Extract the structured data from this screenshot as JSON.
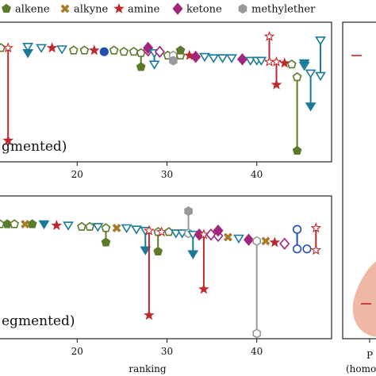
{
  "legend": [
    {
      "label": "alkene",
      "marker": "pentagon",
      "color": "#5b7a2a"
    },
    {
      "label": "alkyne",
      "marker": "cross",
      "color": "#a67c2a"
    },
    {
      "label": "amine",
      "marker": "star",
      "color": "#c0282d"
    },
    {
      "label": "ketone",
      "marker": "diamond",
      "color": "#a3267c"
    },
    {
      "label": "methylether",
      "marker": "hexagon",
      "color": "#999999"
    }
  ],
  "colors": {
    "alkene": "#5b7a2a",
    "alkyne": "#a67c2a",
    "amine": "#c0282d",
    "ketone": "#a3267c",
    "methylether": "#999999",
    "teal": "#1a7a99",
    "blue": "#1f4fb0",
    "violin": "#f0b8a4"
  },
  "chart_data": [
    {
      "type": "scatter",
      "panel_label": "gmented)",
      "xlabel": "",
      "xlim": [
        11,
        48
      ],
      "ylim": [
        0,
        1
      ],
      "xticks": [
        20,
        30,
        40
      ],
      "points": [
        {
          "x": 11.5,
          "y1": 0.86,
          "y2": 0.86,
          "marker": "pentagon",
          "color": "alkene",
          "fill": false
        },
        {
          "x": 12.3,
          "y1": 0.86,
          "y2": 0.13,
          "marker": "star",
          "color": "amine",
          "fill": true
        },
        {
          "x": 14.5,
          "y1": 0.87,
          "y2": 0.82,
          "marker": "tri",
          "color": "teal",
          "fill": true
        },
        {
          "x": 16.0,
          "y1": 0.86,
          "y2": 0.86,
          "marker": "tri",
          "color": "teal",
          "fill": false
        },
        {
          "x": 17.2,
          "y1": 0.86,
          "y2": 0.86,
          "marker": "star",
          "color": "amine",
          "fill": true
        },
        {
          "x": 18.3,
          "y1": 0.85,
          "y2": 0.85,
          "marker": "tri",
          "color": "teal",
          "fill": false
        },
        {
          "x": 19.6,
          "y1": 0.84,
          "y2": 0.84,
          "marker": "pentagon",
          "color": "alkene",
          "fill": false
        },
        {
          "x": 20.8,
          "y1": 0.84,
          "y2": 0.84,
          "marker": "pentagon",
          "color": "alkene",
          "fill": false
        },
        {
          "x": 21.9,
          "y1": 0.84,
          "y2": 0.84,
          "marker": "star",
          "color": "amine",
          "fill": true
        },
        {
          "x": 23.0,
          "y1": 0.83,
          "y2": 0.83,
          "marker": "circle",
          "color": "blue",
          "fill": true
        },
        {
          "x": 24.1,
          "y1": 0.84,
          "y2": 0.84,
          "marker": "pentagon",
          "color": "alkene",
          "fill": false
        },
        {
          "x": 25.2,
          "y1": 0.83,
          "y2": 0.83,
          "marker": "pentagon",
          "color": "alkene",
          "fill": false
        },
        {
          "x": 26.3,
          "y1": 0.83,
          "y2": 0.83,
          "marker": "pentagon",
          "color": "alkene",
          "fill": false
        },
        {
          "x": 27.1,
          "y1": 0.82,
          "y2": 0.71,
          "marker": "pentagon",
          "color": "alkene",
          "fill": true
        },
        {
          "x": 27.9,
          "y1": 0.84,
          "y2": 0.86,
          "marker": "diamond",
          "color": "ketone",
          "fill": true
        },
        {
          "x": 28.6,
          "y1": 0.82,
          "y2": 0.73,
          "marker": "tri",
          "color": "teal",
          "fill": false
        },
        {
          "x": 29.2,
          "y1": 0.83,
          "y2": 0.83,
          "marker": "diamond",
          "color": "ketone",
          "fill": false
        },
        {
          "x": 30.1,
          "y1": 0.8,
          "y2": 0.8,
          "marker": "pentagon",
          "color": "alkene",
          "fill": false
        },
        {
          "x": 30.7,
          "y1": 0.8,
          "y2": 0.76,
          "marker": "hexagon",
          "color": "methylether",
          "fill": true
        },
        {
          "x": 31.5,
          "y1": 0.8,
          "y2": 0.84,
          "marker": "pentagon",
          "color": "alkene",
          "fill": true
        },
        {
          "x": 32.5,
          "y1": 0.8,
          "y2": 0.8,
          "marker": "star",
          "color": "amine",
          "fill": true
        },
        {
          "x": 33.2,
          "y1": 0.79,
          "y2": 0.79,
          "marker": "diamond",
          "color": "ketone",
          "fill": true
        },
        {
          "x": 34.2,
          "y1": 0.79,
          "y2": 0.79,
          "marker": "tri",
          "color": "teal",
          "fill": false
        },
        {
          "x": 35.2,
          "y1": 0.78,
          "y2": 0.78,
          "marker": "tri",
          "color": "teal",
          "fill": false
        },
        {
          "x": 36.2,
          "y1": 0.78,
          "y2": 0.78,
          "marker": "tri",
          "color": "teal",
          "fill": false
        },
        {
          "x": 37.2,
          "y1": 0.78,
          "y2": 0.78,
          "marker": "tri",
          "color": "teal",
          "fill": false
        },
        {
          "x": 38.4,
          "y1": 0.77,
          "y2": 0.77,
          "marker": "diamond",
          "color": "ketone",
          "fill": true
        },
        {
          "x": 39.3,
          "y1": 0.76,
          "y2": 0.76,
          "marker": "tri",
          "color": "teal",
          "fill": false
        },
        {
          "x": 40.0,
          "y1": 0.76,
          "y2": 0.76,
          "marker": "tri",
          "color": "teal",
          "fill": false
        },
        {
          "x": 40.5,
          "y1": 0.76,
          "y2": 0.76,
          "marker": "tri",
          "color": "teal",
          "fill": false
        },
        {
          "x": 41.4,
          "y1": 0.75,
          "y2": 0.95,
          "marker": "star",
          "color": "amine",
          "fill": false
        },
        {
          "x": 42.2,
          "y1": 0.75,
          "y2": 0.57,
          "marker": "star",
          "color": "amine",
          "fill": true
        },
        {
          "x": 43.1,
          "y1": 0.74,
          "y2": 0.74,
          "marker": "star",
          "color": "amine",
          "fill": true
        },
        {
          "x": 43.9,
          "y1": 0.73,
          "y2": 0.73,
          "marker": "pentagon",
          "color": "alkene",
          "fill": false
        },
        {
          "x": 44.5,
          "y1": 0.63,
          "y2": 0.05,
          "marker": "pentagon",
          "color": "alkene",
          "fill": true
        },
        {
          "x": 45.3,
          "y1": 0.72,
          "y2": 0.74,
          "marker": "tri",
          "color": "teal",
          "fill": true
        },
        {
          "x": 46.0,
          "y1": 0.66,
          "y2": 0.4,
          "marker": "tri",
          "color": "teal",
          "fill": true
        },
        {
          "x": 47.1,
          "y1": 0.64,
          "y2": 0.92,
          "marker": "tri",
          "color": "teal",
          "fill": false
        }
      ]
    },
    {
      "type": "scatter",
      "panel_label": "egmented)",
      "xlabel": "ranking",
      "xlim": [
        11,
        48
      ],
      "ylim": [
        0,
        1
      ],
      "xticks": [
        20,
        30,
        40
      ],
      "points": [
        {
          "x": 11.4,
          "y1": 0.85,
          "y2": 0.85,
          "marker": "pentagon",
          "color": "alkene",
          "fill": false
        },
        {
          "x": 12.2,
          "y1": 0.85,
          "y2": 0.85,
          "marker": "pentagon",
          "color": "alkene",
          "fill": true
        },
        {
          "x": 13.0,
          "y1": 0.85,
          "y2": 0.85,
          "marker": "pentagon",
          "color": "alkene",
          "fill": false
        },
        {
          "x": 14.2,
          "y1": 0.85,
          "y2": 0.85,
          "marker": "cross",
          "color": "alkyne",
          "fill": true
        },
        {
          "x": 15.0,
          "y1": 0.85,
          "y2": 0.85,
          "marker": "pentagon",
          "color": "alkene",
          "fill": true
        },
        {
          "x": 16.3,
          "y1": 0.85,
          "y2": 0.85,
          "marker": "tri",
          "color": "teal",
          "fill": true
        },
        {
          "x": 17.7,
          "y1": 0.84,
          "y2": 0.84,
          "marker": "star",
          "color": "amine",
          "fill": true
        },
        {
          "x": 19.0,
          "y1": 0.84,
          "y2": 0.84,
          "marker": "tri",
          "color": "teal",
          "fill": false
        },
        {
          "x": 20.5,
          "y1": 0.83,
          "y2": 0.83,
          "marker": "pentagon",
          "color": "alkene",
          "fill": false
        },
        {
          "x": 21.4,
          "y1": 0.83,
          "y2": 0.83,
          "marker": "pentagon",
          "color": "alkene",
          "fill": false
        },
        {
          "x": 22.3,
          "y1": 0.83,
          "y2": 0.83,
          "marker": "tri",
          "color": "teal",
          "fill": false
        },
        {
          "x": 23.2,
          "y1": 0.82,
          "y2": 0.71,
          "marker": "pentagon",
          "color": "alkene",
          "fill": true
        },
        {
          "x": 24.4,
          "y1": 0.82,
          "y2": 0.82,
          "marker": "cross",
          "color": "alkyne",
          "fill": true
        },
        {
          "x": 25.5,
          "y1": 0.82,
          "y2": 0.82,
          "marker": "tri",
          "color": "teal",
          "fill": false
        },
        {
          "x": 26.6,
          "y1": 0.81,
          "y2": 0.81,
          "marker": "tri",
          "color": "teal",
          "fill": false
        },
        {
          "x": 27.6,
          "y1": 0.8,
          "y2": 0.65,
          "marker": "tri",
          "color": "teal",
          "fill": true
        },
        {
          "x": 28.0,
          "y1": 0.8,
          "y2": 0.15,
          "marker": "star",
          "color": "amine",
          "fill": true
        },
        {
          "x": 29.0,
          "y1": 0.79,
          "y2": 0.64,
          "marker": "pentagon",
          "color": "alkene",
          "fill": true
        },
        {
          "x": 29.4,
          "y1": 0.79,
          "y2": 0.79,
          "marker": "star",
          "color": "amine",
          "fill": false
        },
        {
          "x": 30.2,
          "y1": 0.79,
          "y2": 0.79,
          "marker": "pentagon",
          "color": "alkene",
          "fill": false
        },
        {
          "x": 31.0,
          "y1": 0.78,
          "y2": 0.78,
          "marker": "tri",
          "color": "teal",
          "fill": false
        },
        {
          "x": 31.7,
          "y1": 0.78,
          "y2": 0.78,
          "marker": "tri",
          "color": "teal",
          "fill": false
        },
        {
          "x": 32.4,
          "y1": 0.78,
          "y2": 0.95,
          "marker": "hexagon",
          "color": "methylether",
          "fill": true
        },
        {
          "x": 32.9,
          "y1": 0.77,
          "y2": 0.62,
          "marker": "tri",
          "color": "teal",
          "fill": true
        },
        {
          "x": 33.6,
          "y1": 0.77,
          "y2": 0.77,
          "marker": "diamond",
          "color": "ketone",
          "fill": true
        },
        {
          "x": 34.1,
          "y1": 0.77,
          "y2": 0.35,
          "marker": "star",
          "color": "amine",
          "fill": true
        },
        {
          "x": 34.9,
          "y1": 0.77,
          "y2": 0.77,
          "marker": "diamond",
          "color": "ketone",
          "fill": false
        },
        {
          "x": 35.7,
          "y1": 0.76,
          "y2": 0.8,
          "marker": "diamond",
          "color": "ketone",
          "fill": true
        },
        {
          "x": 36.8,
          "y1": 0.75,
          "y2": 0.75,
          "marker": "cross",
          "color": "alkyne",
          "fill": true
        },
        {
          "x": 38.0,
          "y1": 0.74,
          "y2": 0.74,
          "marker": "tri",
          "color": "teal",
          "fill": false
        },
        {
          "x": 39.1,
          "y1": 0.73,
          "y2": 0.73,
          "marker": "diamond",
          "color": "ketone",
          "fill": true
        },
        {
          "x": 40.0,
          "y1": 0.72,
          "y2": 0.01,
          "marker": "hexagon",
          "color": "methylether",
          "fill": false
        },
        {
          "x": 41.0,
          "y1": 0.72,
          "y2": 0.72,
          "marker": "cross",
          "color": "alkyne",
          "fill": true
        },
        {
          "x": 42.0,
          "y1": 0.71,
          "y2": 0.71,
          "marker": "star",
          "color": "amine",
          "fill": true
        },
        {
          "x": 43.1,
          "y1": 0.7,
          "y2": 0.7,
          "marker": "diamond",
          "color": "ketone",
          "fill": false
        },
        {
          "x": 44.5,
          "y1": 0.66,
          "y2": 0.81,
          "marker": "circle",
          "color": "blue",
          "fill": false
        },
        {
          "x": 45.6,
          "y1": 0.66,
          "y2": 0.66,
          "marker": "circle",
          "color": "blue",
          "fill": false
        },
        {
          "x": 46.6,
          "y1": 0.65,
          "y2": 0.82,
          "marker": "star",
          "color": "amine",
          "fill": false
        }
      ]
    },
    {
      "type": "violin",
      "tick_label_1": "P",
      "tick_label_2": "(homo"
    }
  ]
}
